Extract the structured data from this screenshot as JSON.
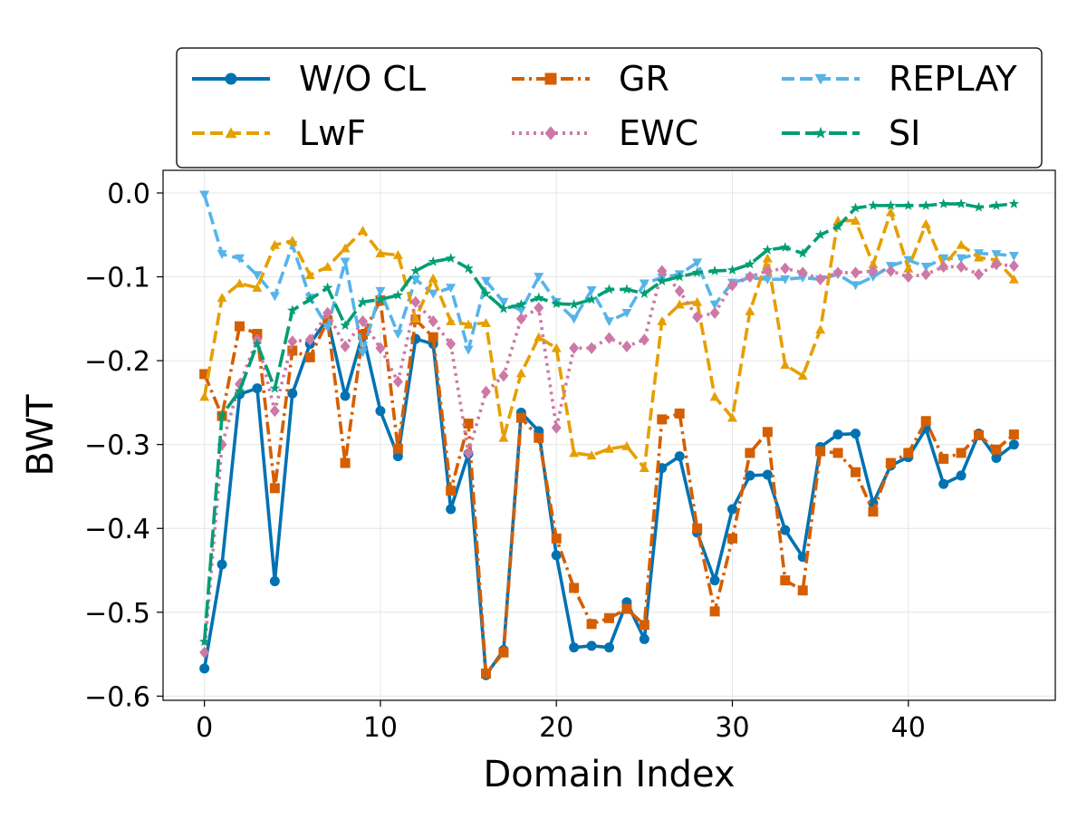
{
  "chart_data": {
    "type": "line",
    "title": "",
    "xlabel": "Domain Index",
    "ylabel": "BWT",
    "xlim": [
      -2.35,
      48.35
    ],
    "ylim": [
      -0.605,
      0.027
    ],
    "xticks": [
      0,
      10,
      20,
      30,
      40
    ],
    "xtick_labels": [
      "0",
      "10",
      "20",
      "30",
      "40"
    ],
    "yticks": [
      0.0,
      -0.1,
      -0.2,
      -0.3,
      -0.4,
      -0.5,
      -0.6
    ],
    "ytick_labels": [
      "0.0",
      "−0.1",
      "−0.2",
      "−0.3",
      "−0.4",
      "−0.5",
      "−0.6"
    ],
    "grid": true,
    "legend_position": "top",
    "legend_columns": 3,
    "x": [
      0,
      1,
      2,
      3,
      4,
      5,
      6,
      7,
      8,
      9,
      10,
      11,
      12,
      13,
      14,
      15,
      16,
      17,
      18,
      19,
      20,
      21,
      22,
      23,
      24,
      25,
      26,
      27,
      28,
      29,
      30,
      31,
      32,
      33,
      34,
      35,
      36,
      37,
      38,
      39,
      40,
      41,
      42,
      43,
      44,
      45,
      46
    ],
    "series": [
      {
        "name": "W/O CL",
        "color": "#0072b2",
        "dash": "solid",
        "marker": "circle",
        "values": [
          -0.567,
          -0.443,
          -0.24,
          -0.233,
          -0.463,
          -0.239,
          -0.18,
          -0.15,
          -0.242,
          -0.168,
          -0.26,
          -0.314,
          -0.174,
          -0.18,
          -0.377,
          -0.311,
          -0.575,
          -0.545,
          -0.262,
          -0.284,
          -0.432,
          -0.542,
          -0.54,
          -0.542,
          -0.488,
          -0.532,
          -0.328,
          -0.314,
          -0.405,
          -0.462,
          -0.377,
          -0.337,
          -0.336,
          -0.402,
          -0.434,
          -0.303,
          -0.288,
          -0.287,
          -0.37,
          -0.325,
          -0.315,
          -0.281,
          -0.347,
          -0.337,
          -0.287,
          -0.316,
          -0.3
        ]
      },
      {
        "name": "GR",
        "color": "#d55e00",
        "dash": "dashdot",
        "marker": "square",
        "values": [
          -0.216,
          -0.266,
          -0.159,
          -0.168,
          -0.352,
          -0.188,
          -0.196,
          -0.152,
          -0.322,
          -0.169,
          -0.128,
          -0.305,
          -0.151,
          -0.172,
          -0.355,
          -0.275,
          -0.573,
          -0.548,
          -0.268,
          -0.292,
          -0.412,
          -0.471,
          -0.514,
          -0.507,
          -0.496,
          -0.515,
          -0.27,
          -0.263,
          -0.4,
          -0.499,
          -0.412,
          -0.31,
          -0.285,
          -0.462,
          -0.474,
          -0.308,
          -0.31,
          -0.333,
          -0.38,
          -0.322,
          -0.31,
          -0.272,
          -0.317,
          -0.31,
          -0.289,
          -0.306,
          -0.288
        ]
      },
      {
        "name": "REPLAY",
        "color": "#56b4e9",
        "dash": "dashed",
        "marker": "triangle-down",
        "values": [
          -0.002,
          -0.073,
          -0.078,
          -0.098,
          -0.123,
          -0.062,
          -0.125,
          -0.16,
          -0.082,
          -0.19,
          -0.117,
          -0.168,
          -0.103,
          -0.12,
          -0.113,
          -0.187,
          -0.105,
          -0.13,
          -0.14,
          -0.1,
          -0.13,
          -0.15,
          -0.116,
          -0.153,
          -0.143,
          -0.108,
          -0.101,
          -0.097,
          -0.083,
          -0.133,
          -0.107,
          -0.101,
          -0.103,
          -0.103,
          -0.101,
          -0.103,
          -0.097,
          -0.11,
          -0.1,
          -0.087,
          -0.08,
          -0.088,
          -0.078,
          -0.078,
          -0.072,
          -0.073,
          -0.075
        ]
      },
      {
        "name": "LwF",
        "color": "#e69f00",
        "dash": "dashed",
        "marker": "triangle-up",
        "values": [
          -0.243,
          -0.125,
          -0.108,
          -0.113,
          -0.062,
          -0.057,
          -0.098,
          -0.088,
          -0.066,
          -0.045,
          -0.072,
          -0.074,
          -0.15,
          -0.102,
          -0.153,
          -0.157,
          -0.155,
          -0.292,
          -0.215,
          -0.172,
          -0.185,
          -0.31,
          -0.313,
          -0.305,
          -0.302,
          -0.328,
          -0.153,
          -0.133,
          -0.13,
          -0.243,
          -0.268,
          -0.141,
          -0.078,
          -0.205,
          -0.218,
          -0.163,
          -0.033,
          -0.033,
          -0.085,
          -0.023,
          -0.09,
          -0.037,
          -0.087,
          -0.062,
          -0.077,
          -0.08,
          -0.103
        ]
      },
      {
        "name": "EWC",
        "color": "#cc79a7",
        "dash": "dotted",
        "marker": "diamond",
        "values": [
          -0.548,
          -0.3,
          -0.228,
          -0.175,
          -0.26,
          -0.177,
          -0.175,
          -0.143,
          -0.183,
          -0.153,
          -0.185,
          -0.225,
          -0.13,
          -0.153,
          -0.18,
          -0.31,
          -0.237,
          -0.218,
          -0.15,
          -0.137,
          -0.28,
          -0.185,
          -0.185,
          -0.173,
          -0.183,
          -0.175,
          -0.093,
          -0.117,
          -0.148,
          -0.143,
          -0.11,
          -0.1,
          -0.093,
          -0.09,
          -0.095,
          -0.103,
          -0.095,
          -0.095,
          -0.093,
          -0.093,
          -0.1,
          -0.097,
          -0.088,
          -0.088,
          -0.097,
          -0.085,
          -0.087
        ]
      },
      {
        "name": "SI",
        "color": "#009e73",
        "dash": "longdash",
        "marker": "star",
        "values": [
          -0.535,
          -0.265,
          -0.236,
          -0.18,
          -0.233,
          -0.14,
          -0.127,
          -0.113,
          -0.158,
          -0.13,
          -0.127,
          -0.122,
          -0.093,
          -0.082,
          -0.078,
          -0.09,
          -0.12,
          -0.138,
          -0.133,
          -0.125,
          -0.132,
          -0.133,
          -0.127,
          -0.115,
          -0.115,
          -0.12,
          -0.105,
          -0.1,
          -0.095,
          -0.093,
          -0.092,
          -0.085,
          -0.068,
          -0.065,
          -0.072,
          -0.05,
          -0.04,
          -0.018,
          -0.015,
          -0.015,
          -0.015,
          -0.015,
          -0.013,
          -0.013,
          -0.017,
          -0.015,
          -0.013
        ]
      }
    ]
  }
}
